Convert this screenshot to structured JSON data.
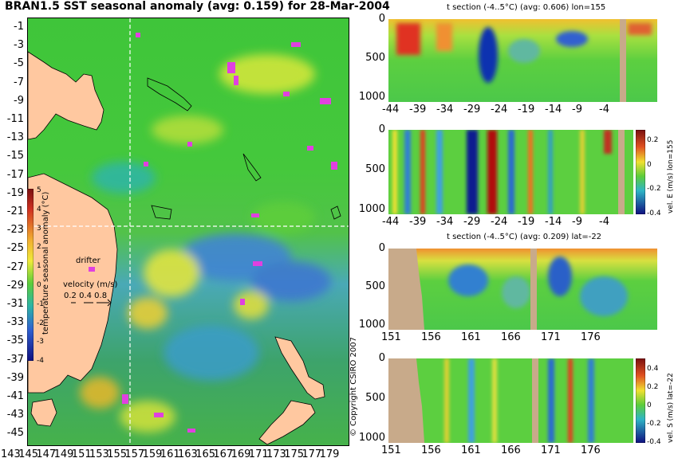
{
  "map": {
    "title": "BRAN1.5 SST seasonal anomaly (avg: 0.159) for 28-Mar-2004",
    "lat_ticks": [
      "-1",
      "-3",
      "-5",
      "-7",
      "-9",
      "-11",
      "-13",
      "-15",
      "-17",
      "-19",
      "-21",
      "-23",
      "-25",
      "-27",
      "-29",
      "-31",
      "-33",
      "-35",
      "-37",
      "-39",
      "-41",
      "-43",
      "-45"
    ],
    "lon_ticks": [
      "143",
      "145",
      "147",
      "149",
      "151",
      "153",
      "155",
      "157",
      "159",
      "161",
      "163",
      "165",
      "167",
      "169",
      "171",
      "173",
      "175",
      "177",
      "179"
    ],
    "drifter_label": "drifter",
    "velocity_label": "velocity (m/s)",
    "velocity_values": "0.2 0.4 0.8",
    "colorbar_label": "temperature seasonal anomaly (°C)",
    "colorbar_ticks": [
      "5",
      "4",
      "3",
      "2",
      "1",
      "0",
      "-1",
      "-2",
      "-3",
      "-4"
    ],
    "copyright": "© Copyright CSIRO 2007",
    "marker_lon": 155,
    "marker_lat": -22
  },
  "panels": [
    {
      "title": "t section (-4..5°C) (avg: 0.606) lon=155",
      "y_ticks": [
        "0",
        "500",
        "1000"
      ],
      "x_ticks": [
        "-44",
        "-39",
        "-34",
        "-29",
        "-24",
        "-19",
        "-14",
        "-9",
        "-4"
      ]
    },
    {
      "title": "",
      "y_ticks": [
        "0",
        "500",
        "1000"
      ],
      "x_ticks": [
        "-44",
        "-39",
        "-34",
        "-29",
        "-24",
        "-19",
        "-14",
        "-9",
        "-4"
      ],
      "colorbar_label": "vel. E (m/s) lon=155",
      "colorbar_ticks": [
        "0.2",
        "0",
        "-0.2",
        "-0.4"
      ]
    },
    {
      "title": "t section (-4..5°C) (avg: 0.209) lat=-22",
      "y_ticks": [
        "0",
        "500",
        "1000"
      ],
      "x_ticks": [
        "151",
        "156",
        "161",
        "166",
        "171",
        "176"
      ]
    },
    {
      "title": "",
      "y_ticks": [
        "0",
        "500",
        "1000"
      ],
      "x_ticks": [
        "151",
        "156",
        "161",
        "166",
        "171",
        "176"
      ],
      "colorbar_label": "vel. S (m/s) lat=-22",
      "colorbar_ticks": [
        "0.4",
        "0.2",
        "0",
        "-0.2",
        "-0.4"
      ]
    }
  ]
}
